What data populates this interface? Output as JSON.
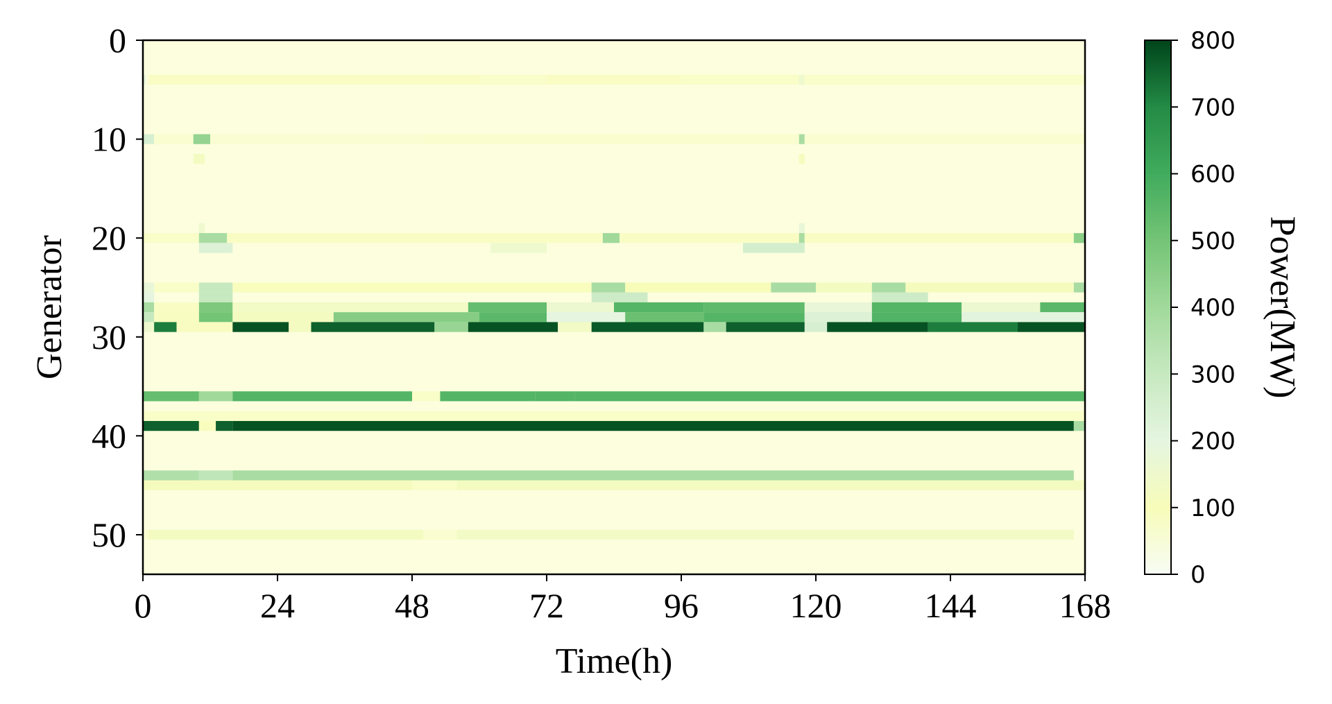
{
  "chart_data": {
    "type": "heatmap",
    "xlabel": "Time(h)",
    "ylabel": "Generator",
    "xlim": [
      0,
      168
    ],
    "ylim": [
      54,
      0
    ],
    "xticks": [
      "0",
      "24",
      "48",
      "72",
      "96",
      "120",
      "144",
      "168"
    ],
    "yticks": [
      "0",
      "10",
      "20",
      "30",
      "40",
      "50"
    ],
    "n_hours": 168,
    "n_generators": 54,
    "colormap": "Greens",
    "colorbar": {
      "label": "Power(MW)",
      "range": [
        0,
        800
      ],
      "ticks": [
        "0",
        "100",
        "200",
        "300",
        "400",
        "500",
        "600",
        "700",
        "800"
      ]
    },
    "rows": [
      {
        "generator": 4,
        "segments": [
          [
            0,
            0.5,
            180
          ],
          [
            1,
            60,
            70
          ],
          [
            60,
            72,
            55
          ],
          [
            72,
            96,
            70
          ],
          [
            96,
            118,
            60
          ],
          [
            117,
            118,
            150
          ],
          [
            118,
            168,
            55
          ]
        ]
      },
      {
        "generator": 10,
        "segments": [
          [
            0,
            2,
            250
          ],
          [
            2,
            9,
            40
          ],
          [
            9,
            12,
            430
          ],
          [
            12,
            50,
            35
          ],
          [
            50,
            117,
            45
          ],
          [
            117,
            118,
            380
          ],
          [
            118,
            168,
            40
          ]
        ]
      },
      {
        "generator": 12,
        "segments": [
          [
            9,
            11,
            120
          ],
          [
            117,
            118,
            110
          ]
        ]
      },
      {
        "generator": 19,
        "segments": [
          [
            10,
            11,
            150
          ],
          [
            117,
            118,
            180
          ]
        ]
      },
      {
        "generator": 20,
        "segments": [
          [
            0,
            10,
            60
          ],
          [
            10,
            15,
            380
          ],
          [
            15,
            82,
            70
          ],
          [
            82,
            85,
            400
          ],
          [
            85,
            118,
            70
          ],
          [
            117,
            118,
            380
          ],
          [
            118,
            166,
            70
          ],
          [
            166,
            168,
            450
          ]
        ]
      },
      {
        "generator": 21,
        "segments": [
          [
            10,
            16,
            230
          ],
          [
            62,
            72,
            150
          ],
          [
            107,
            118,
            260
          ]
        ]
      },
      {
        "generator": 25,
        "segments": [
          [
            0,
            2,
            180
          ],
          [
            2,
            10,
            60
          ],
          [
            10,
            16,
            300
          ],
          [
            16,
            80,
            90
          ],
          [
            80,
            86,
            380
          ],
          [
            86,
            112,
            100
          ],
          [
            112,
            120,
            380
          ],
          [
            120,
            130,
            120
          ],
          [
            130,
            136,
            380
          ],
          [
            136,
            166,
            110
          ],
          [
            166,
            168,
            380
          ]
        ]
      },
      {
        "generator": 26,
        "segments": [
          [
            0,
            2,
            200
          ],
          [
            10,
            16,
            300
          ],
          [
            80,
            90,
            280
          ],
          [
            130,
            140,
            280
          ]
        ]
      },
      {
        "generator": 27,
        "segments": [
          [
            0,
            2,
            380
          ],
          [
            2,
            10,
            70
          ],
          [
            10,
            16,
            480
          ],
          [
            16,
            58,
            130
          ],
          [
            58,
            72,
            530
          ],
          [
            72,
            84,
            160
          ],
          [
            84,
            100,
            560
          ],
          [
            100,
            118,
            540
          ],
          [
            118,
            130,
            180
          ],
          [
            130,
            146,
            560
          ],
          [
            146,
            160,
            160
          ],
          [
            160,
            168,
            550
          ]
        ]
      },
      {
        "generator": 28,
        "segments": [
          [
            0,
            2,
            300
          ],
          [
            2,
            10,
            80
          ],
          [
            10,
            16,
            500
          ],
          [
            16,
            34,
            120
          ],
          [
            34,
            60,
            460
          ],
          [
            60,
            72,
            550
          ],
          [
            72,
            86,
            200
          ],
          [
            86,
            100,
            520
          ],
          [
            100,
            118,
            560
          ],
          [
            118,
            130,
            230
          ],
          [
            130,
            146,
            570
          ],
          [
            146,
            168,
            210
          ]
        ]
      },
      {
        "generator": 29,
        "segments": [
          [
            0,
            2,
            150
          ],
          [
            2,
            6,
            720
          ],
          [
            6,
            16,
            80
          ],
          [
            16,
            26,
            780
          ],
          [
            26,
            30,
            120
          ],
          [
            30,
            52,
            760
          ],
          [
            52,
            58,
            420
          ],
          [
            58,
            74,
            780
          ],
          [
            74,
            80,
            130
          ],
          [
            80,
            100,
            770
          ],
          [
            100,
            104,
            380
          ],
          [
            104,
            118,
            760
          ],
          [
            118,
            122,
            250
          ],
          [
            122,
            140,
            780
          ],
          [
            140,
            156,
            720
          ],
          [
            156,
            168,
            780
          ]
        ]
      },
      {
        "generator": 36,
        "segments": [
          [
            0,
            10,
            530
          ],
          [
            10,
            16,
            400
          ],
          [
            16,
            48,
            560
          ],
          [
            48,
            53,
            60
          ],
          [
            53,
            70,
            560
          ],
          [
            70,
            77,
            560
          ],
          [
            77,
            168,
            560
          ]
        ]
      },
      {
        "generator": 38,
        "segments": [
          [
            0,
            168,
            60
          ]
        ]
      },
      {
        "generator": 39,
        "segments": [
          [
            0,
            10,
            760
          ],
          [
            10,
            13,
            90
          ],
          [
            13,
            16,
            760
          ],
          [
            16,
            166,
            780
          ],
          [
            166,
            168,
            380
          ]
        ]
      },
      {
        "generator": 44,
        "segments": [
          [
            0,
            10,
            360
          ],
          [
            10,
            16,
            320
          ],
          [
            16,
            166,
            380
          ]
        ]
      },
      {
        "generator": 45,
        "segments": [
          [
            0,
            48,
            110
          ],
          [
            48,
            56,
            60
          ],
          [
            56,
            168,
            120
          ]
        ]
      },
      {
        "generator": 50,
        "segments": [
          [
            0,
            1,
            40
          ],
          [
            1,
            50,
            120
          ],
          [
            50,
            56,
            40
          ],
          [
            56,
            166,
            130
          ]
        ]
      }
    ]
  }
}
